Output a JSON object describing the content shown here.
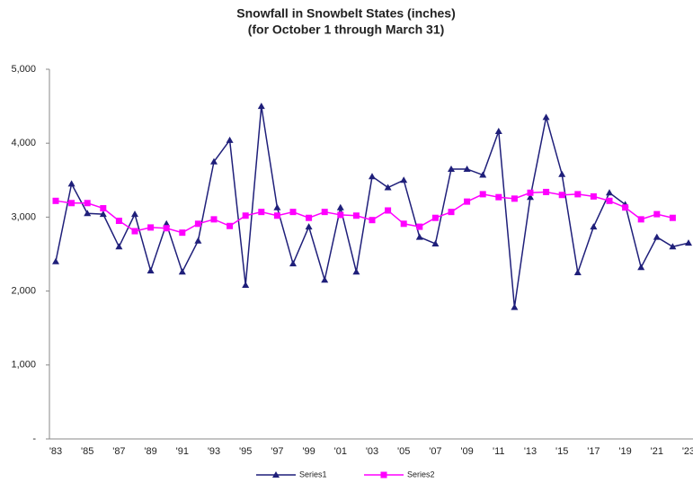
{
  "chart_data": {
    "type": "line",
    "title": "Snowfall in Snowbelt States (inches)",
    "subtitle": "(for October 1 through March 31)",
    "categories": [
      "'83",
      null,
      "'85",
      null,
      "'87",
      null,
      "'89",
      null,
      "'91",
      null,
      "'93",
      null,
      "'95",
      null,
      "'97",
      null,
      "'99",
      null,
      "'01",
      null,
      "'03",
      null,
      "'05",
      null,
      "'07",
      null,
      "'09",
      null,
      "'11",
      null,
      "'13",
      null,
      "'15",
      null,
      "'17",
      null,
      "'19",
      null,
      "'21",
      null,
      "'23"
    ],
    "series": [
      {
        "name": "Series1",
        "color": "#1f1f7a",
        "marker": "triangle",
        "values": [
          2400,
          3450,
          3050,
          3040,
          2600,
          3040,
          2275,
          2910,
          2260,
          2680,
          3750,
          4040,
          2080,
          4500,
          3130,
          2370,
          2870,
          2150,
          3130,
          2260,
          3550,
          3400,
          3500,
          2730,
          2640,
          3650,
          3650,
          3570,
          4160,
          1780,
          3270,
          4350,
          3580,
          2250,
          2870,
          3330,
          3170,
          2320,
          2730,
          2600,
          2650
        ]
      },
      {
        "name": "Series2",
        "color": "#ff00ff",
        "marker": "square",
        "values": [
          3220,
          3190,
          3190,
          3120,
          2950,
          2810,
          2860,
          2850,
          2790,
          2910,
          2970,
          2880,
          3020,
          3070,
          3020,
          3070,
          2990,
          3070,
          3030,
          3020,
          2960,
          3090,
          2910,
          2870,
          2990,
          3070,
          3210,
          3310,
          3270,
          3250,
          3330,
          3340,
          3300,
          3310,
          3280,
          3220,
          3130,
          2970,
          3040,
          2990,
          null
        ]
      }
    ],
    "ylim": [
      0,
      5000
    ],
    "yticks": [
      {
        "value": 0,
        "label": "-"
      },
      {
        "value": 1000,
        "label": "1,000"
      },
      {
        "value": 2000,
        "label": "2,000"
      },
      {
        "value": 3000,
        "label": "3,000"
      },
      {
        "value": 4000,
        "label": "4,000"
      },
      {
        "value": 5000,
        "label": "5,000"
      }
    ],
    "grid": false,
    "legend": "bottom"
  }
}
